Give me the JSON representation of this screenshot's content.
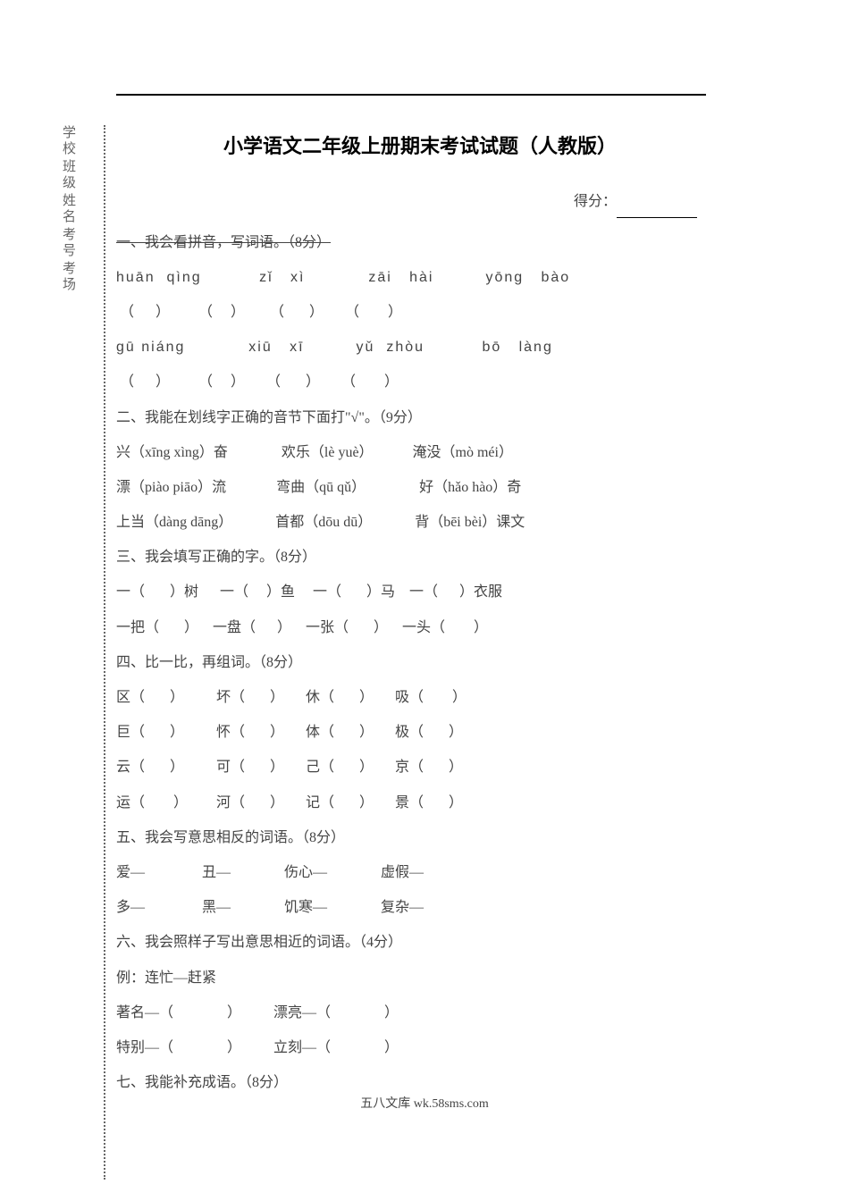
{
  "colors": {
    "text": "#444444",
    "title": "#000000",
    "sidebar_text": "#666666",
    "rule": "#000000",
    "background": "#ffffff"
  },
  "fonts": {
    "body_family": "SimSun",
    "title_family": "SimHei",
    "body_size_pt": 12,
    "title_size_pt": 16,
    "line_height": 2.2
  },
  "sidebar": {
    "items": [
      "学校",
      "班级",
      "姓名",
      "考号",
      "考场"
    ]
  },
  "title": "小学语文二年级上册期末考试试题（人教版）",
  "score_label": "得分：",
  "sections": {
    "s1_header": "一、我会看拼音，写词语。（8分）",
    "s1_row1_pinyin": "huān  qìng          zǐ   xì           zāi   hài         yōng   bào",
    "s1_row1_blanks": " （      ）        （     ）       （       ）      （        ）",
    "s1_row2_pinyin": "gū niáng           xiū   xī         yǔ  zhòu          bō   làng",
    "s1_row2_blanks": " （      ）        （     ）      （       ）      （        ）",
    "s2_header": "二、我能在划线字正确的音节下面打\"√\"。（9分）",
    "s2_row1": "兴（xīng xìng）奋               欢乐（lè yuè）           淹没（mò méi）",
    "s2_row2": "漂（piào piāo）流              弯曲（qū qǔ）               好（hǎo hào）奇",
    "s2_row3": "上当（dàng dāng）            首都（dōu dū）            背（bēi bèi）课文",
    "s3_header": "三、我会填写正确的字。（8分）",
    "s3_row1": "一（       ）树      一（     ）鱼     一（       ）马    一（      ）衣服",
    "s3_row2": "一把（       ）    一盘（      ）    一张（       ）    一头（        ）",
    "s4_header": "四、比一比，再组词。（8分）",
    "s4_row1": "区（       ）         坏（       ）      休（       ）      吸（        ）",
    "s4_row2": "巨（       ）         怀（       ）      体（       ）      极（       ）",
    "s4_row3": "云（       ）         可（       ）      己（       ）      京（       ）",
    "s4_row4": "运（        ）        河（       ）      记（       ）      景（       ）",
    "s5_header": "五、我会写意思相反的词语。（8分）",
    "s5_row1": "爱—                丑—               伤心—               虚假—",
    "s5_row2": "多—                黑—               饥寒—               复杂—",
    "s6_header": "六、我会照样子写出意思相近的词语。（4分）",
    "s6_example": "例：连忙—赶紧",
    "s6_row1": "著名—（               ）         漂亮—（               ）",
    "s6_row2": "特别—（               ）         立刻—（               ）",
    "s7_header": "七、我能补充成语。（8分）"
  },
  "footer": "五八文库 wk.58sms.com"
}
